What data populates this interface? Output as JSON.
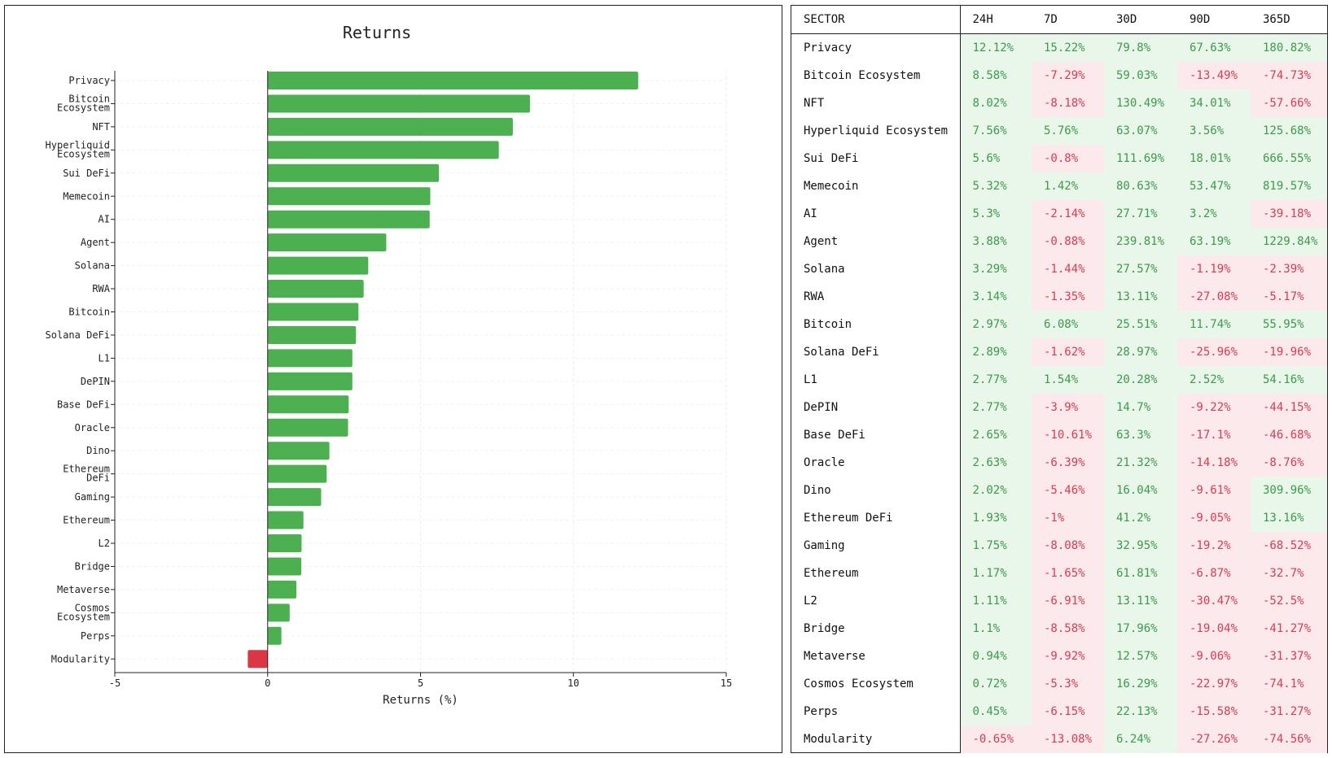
{
  "chart_data": {
    "type": "bar",
    "orientation": "horizontal",
    "title": "Returns",
    "xlabel": "Returns (%)",
    "xlim": [
      -5,
      15
    ],
    "xticks": [
      -5,
      0,
      5,
      10,
      15
    ],
    "grid": true,
    "colors": {
      "positive": "#4caf50",
      "negative": "#dc3545"
    },
    "categories": [
      [
        "Privacy"
      ],
      [
        "Bitcoin",
        "Ecosystem"
      ],
      [
        "NFT"
      ],
      [
        "Hyperliquid",
        "Ecosystem"
      ],
      [
        "Sui DeFi"
      ],
      [
        "Memecoin"
      ],
      [
        "AI"
      ],
      [
        "Agent"
      ],
      [
        "Solana"
      ],
      [
        "RWA"
      ],
      [
        "Bitcoin"
      ],
      [
        "Solana DeFi"
      ],
      [
        "L1"
      ],
      [
        "DePIN"
      ],
      [
        "Base DeFi"
      ],
      [
        "Oracle"
      ],
      [
        "Dino"
      ],
      [
        "Ethereum",
        "DeFi"
      ],
      [
        "Gaming"
      ],
      [
        "Ethereum"
      ],
      [
        "L2"
      ],
      [
        "Bridge"
      ],
      [
        "Metaverse"
      ],
      [
        "Cosmos",
        "Ecosystem"
      ],
      [
        "Perps"
      ],
      [
        "Modularity"
      ]
    ],
    "values": [
      12.12,
      8.58,
      8.02,
      7.56,
      5.6,
      5.32,
      5.3,
      3.88,
      3.29,
      3.14,
      2.97,
      2.89,
      2.77,
      2.77,
      2.65,
      2.63,
      2.02,
      1.93,
      1.75,
      1.17,
      1.11,
      1.1,
      0.94,
      0.72,
      0.45,
      -0.65
    ]
  },
  "table": {
    "headers": [
      "SECTOR",
      "24H",
      "7D",
      "30D",
      "90D",
      "365D"
    ],
    "rows": [
      [
        "Privacy",
        "12.12%",
        "15.22%",
        "79.8%",
        "67.63%",
        "180.82%"
      ],
      [
        "Bitcoin Ecosystem",
        "8.58%",
        "-7.29%",
        "59.03%",
        "-13.49%",
        "-74.73%"
      ],
      [
        "NFT",
        "8.02%",
        "-8.18%",
        "130.49%",
        "34.01%",
        "-57.66%"
      ],
      [
        "Hyperliquid Ecosystem",
        "7.56%",
        "5.76%",
        "63.07%",
        "3.56%",
        "125.68%"
      ],
      [
        "Sui DeFi",
        "5.6%",
        "-0.8%",
        "111.69%",
        "18.01%",
        "666.55%"
      ],
      [
        "Memecoin",
        "5.32%",
        "1.42%",
        "80.63%",
        "53.47%",
        "819.57%"
      ],
      [
        "AI",
        "5.3%",
        "-2.14%",
        "27.71%",
        "3.2%",
        "-39.18%"
      ],
      [
        "Agent",
        "3.88%",
        "-0.88%",
        "239.81%",
        "63.19%",
        "1229.84%"
      ],
      [
        "Solana",
        "3.29%",
        "-1.44%",
        "27.57%",
        "-1.19%",
        "-2.39%"
      ],
      [
        "RWA",
        "3.14%",
        "-1.35%",
        "13.11%",
        "-27.08%",
        "-5.17%"
      ],
      [
        "Bitcoin",
        "2.97%",
        "6.08%",
        "25.51%",
        "11.74%",
        "55.95%"
      ],
      [
        "Solana DeFi",
        "2.89%",
        "-1.62%",
        "28.97%",
        "-25.96%",
        "-19.96%"
      ],
      [
        "L1",
        "2.77%",
        "1.54%",
        "20.28%",
        "2.52%",
        "54.16%"
      ],
      [
        "DePIN",
        "2.77%",
        "-3.9%",
        "14.7%",
        "-9.22%",
        "-44.15%"
      ],
      [
        "Base DeFi",
        "2.65%",
        "-10.61%",
        "63.3%",
        "-17.1%",
        "-46.68%"
      ],
      [
        "Oracle",
        "2.63%",
        "-6.39%",
        "21.32%",
        "-14.18%",
        "-8.76%"
      ],
      [
        "Dino",
        "2.02%",
        "-5.46%",
        "16.04%",
        "-9.61%",
        "309.96%"
      ],
      [
        "Ethereum DeFi",
        "1.93%",
        "-1%",
        "41.2%",
        "-9.05%",
        "13.16%"
      ],
      [
        "Gaming",
        "1.75%",
        "-8.08%",
        "32.95%",
        "-19.2%",
        "-68.52%"
      ],
      [
        "Ethereum",
        "1.17%",
        "-1.65%",
        "61.81%",
        "-6.87%",
        "-32.7%"
      ],
      [
        "L2",
        "1.11%",
        "-6.91%",
        "13.11%",
        "-30.47%",
        "-52.5%"
      ],
      [
        "Bridge",
        "1.1%",
        "-8.58%",
        "17.96%",
        "-19.04%",
        "-41.27%"
      ],
      [
        "Metaverse",
        "0.94%",
        "-9.92%",
        "12.57%",
        "-9.06%",
        "-31.37%"
      ],
      [
        "Cosmos Ecosystem",
        "0.72%",
        "-5.3%",
        "16.29%",
        "-22.97%",
        "-74.1%"
      ],
      [
        "Perps",
        "0.45%",
        "-6.15%",
        "22.13%",
        "-15.58%",
        "-31.27%"
      ],
      [
        "Modularity",
        "-0.65%",
        "-13.08%",
        "6.24%",
        "-27.26%",
        "-74.56%"
      ]
    ]
  }
}
